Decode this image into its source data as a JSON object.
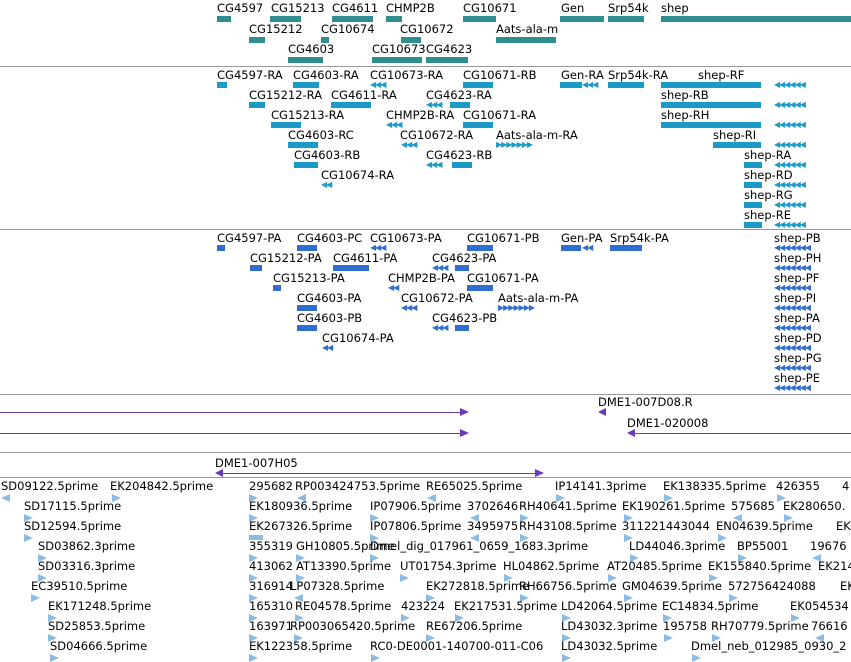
{
  "colors": {
    "gene": "#2f8f8f",
    "transcript": "#1a9ac4",
    "protein": "#2f6ed0",
    "clone": "#6a38b8",
    "est": "#8ebbe0",
    "separator": "#9a9a9a"
  },
  "gene_track": {
    "labels": [
      "CG4597",
      "CG15213",
      "CG4611",
      "CHMP2B",
      "CG10671",
      "Gen",
      "Srp54k",
      "shep",
      "CG15212",
      "CG10674",
      "CG10672",
      "Aats-ala-m",
      "CG4603",
      "CG10673",
      "CG4623"
    ]
  },
  "transcript_track": {
    "labels": [
      "CG4597-RA",
      "CG4603-RA",
      "CG10673-RA",
      "CG10671-RB",
      "Gen-RA",
      "Srp54k-RA",
      "shep-RF",
      "CG15212-RA",
      "CG4611-RA",
      "CG4623-RA",
      "shep-RB",
      "CG15213-RA",
      "CHMP2B-RA",
      "CG10671-RA",
      "shep-RH",
      "CG4603-RC",
      "CG10672-RA",
      "Aats-ala-m-RA",
      "shep-RI",
      "CG4603-RB",
      "CG4623-RB",
      "shep-RA",
      "CG10674-RA",
      "shep-RD",
      "shep-RG",
      "shep-RE"
    ]
  },
  "protein_track": {
    "labels": [
      "CG4597-PA",
      "CG4603-PC",
      "CG10673-PA",
      "CG10671-PB",
      "Gen-PA",
      "Srp54k-PA",
      "shep-PB",
      "CG15212-PA",
      "CG4611-PA",
      "CG4623-PA",
      "shep-PH",
      "CG15213-PA",
      "CHMP2B-PA",
      "CG10671-PA",
      "shep-PF",
      "CG4603-PA",
      "CG10672-PA",
      "Aats-ala-m-PA",
      "shep-PI",
      "CG4603-PB",
      "CG4623-PB",
      "shep-PA",
      "CG10674-PA",
      "shep-PD",
      "shep-PG",
      "shep-PE"
    ]
  },
  "clone_track": {
    "labels": [
      "DME1-007D08.R",
      "DME1-020008"
    ]
  },
  "clone_track2": {
    "labels": [
      "DME1-007H05"
    ]
  },
  "est_track": {
    "labels": [
      "SD09122.5prime",
      "EK204842.5prime",
      "295682",
      "RP003424753.5prime",
      "RE65025.5prime",
      "IP14141.3prime",
      "EK138335.5prime",
      "426355",
      "4",
      "SD17115.5prime",
      "EK180936.5prime",
      "IP07906.5prime",
      "3702646",
      "RH40641.5prime",
      "EK190261.5prime",
      "575685",
      "EK280650.",
      "SD12594.5prime",
      "EK267326.5prime",
      "IP07806.5prime",
      "3495975",
      "RH43108.5prime",
      "311221443044",
      "EN04639.5prime",
      "EK",
      "SD03862.3prime",
      "355319",
      "GH10805.5prime",
      "Dmel_dig_017961_0659_1683.3prime",
      "LD44046.3prime",
      "BP55001",
      "19676",
      "SD03316.3prime",
      "413062",
      "AT13390.5prime",
      "UT01754.3prime",
      "HL04862.5prime",
      "AT20485.5prime",
      "EK155840.5prime",
      "EK214",
      "EC39510.5prime",
      "316914",
      "LP07328.5prime",
      "EK272818.5prime",
      "RH66756.5prime",
      "GM04639.5prime",
      "572756424088",
      "EK",
      "EK171248.5prime",
      "165310",
      "RE04578.5prime",
      "423224",
      "EK217531.5prime",
      "LD42064.5prime",
      "EC14834.5prime",
      "EK054534",
      "SD25853.5prime",
      "163971",
      "RP003065420.5prime",
      "RE67206.5prime",
      "LD43032.3prime",
      "195758",
      "RH70779.5prime",
      "76616",
      "SD04666.5prime",
      "EK122358.5prime",
      "RC0-DE0001-140700-011-C06",
      "LD43032.5prime",
      "Dmel_neb_012985_0930_2"
    ]
  }
}
